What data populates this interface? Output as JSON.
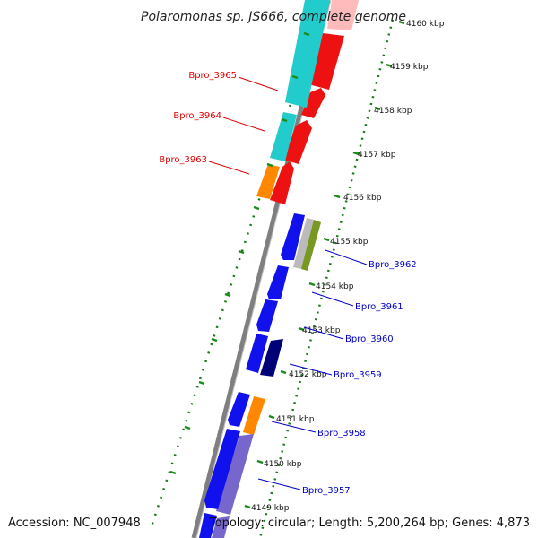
{
  "title": "Polaromonas sp. JS666, complete genome",
  "accession": "Accession: NC_007948",
  "topology": "Topology: circular; Length: 5,200,264 bp; Genes: 4,873",
  "colors": {
    "backbone": "#7f7f7f",
    "ticks": "#1a8a1a",
    "gc_dots": "#1a7a1a",
    "label_red": "#dd0000",
    "label_blue": "#0000cc",
    "cyan": "#22cccc",
    "red": "#ee1111",
    "orange": "#ff8800",
    "blue": "#1111ee",
    "navy": "#000077",
    "gray": "#bbbbbb",
    "olive": "#779922",
    "slate": "#7766cc",
    "pink": "#ffbbbb"
  },
  "ticks": [
    "4160 kbp",
    "4159 kbp",
    "4158 kbp",
    "4157 kbp",
    "4156 kbp",
    "4155 kbp",
    "4154 kbp",
    "4153 kbp",
    "4152 kbp",
    "4151 kbp",
    "4150 kbp",
    "4149 kbp"
  ],
  "labels_left": [
    "Bpro_3965",
    "Bpro_3964",
    "Bpro_3963"
  ],
  "labels_right": [
    "Bpro_3962",
    "Bpro_3961",
    "Bpro_3960",
    "Bpro_3959",
    "Bpro_3958",
    "Bpro_3957"
  ]
}
